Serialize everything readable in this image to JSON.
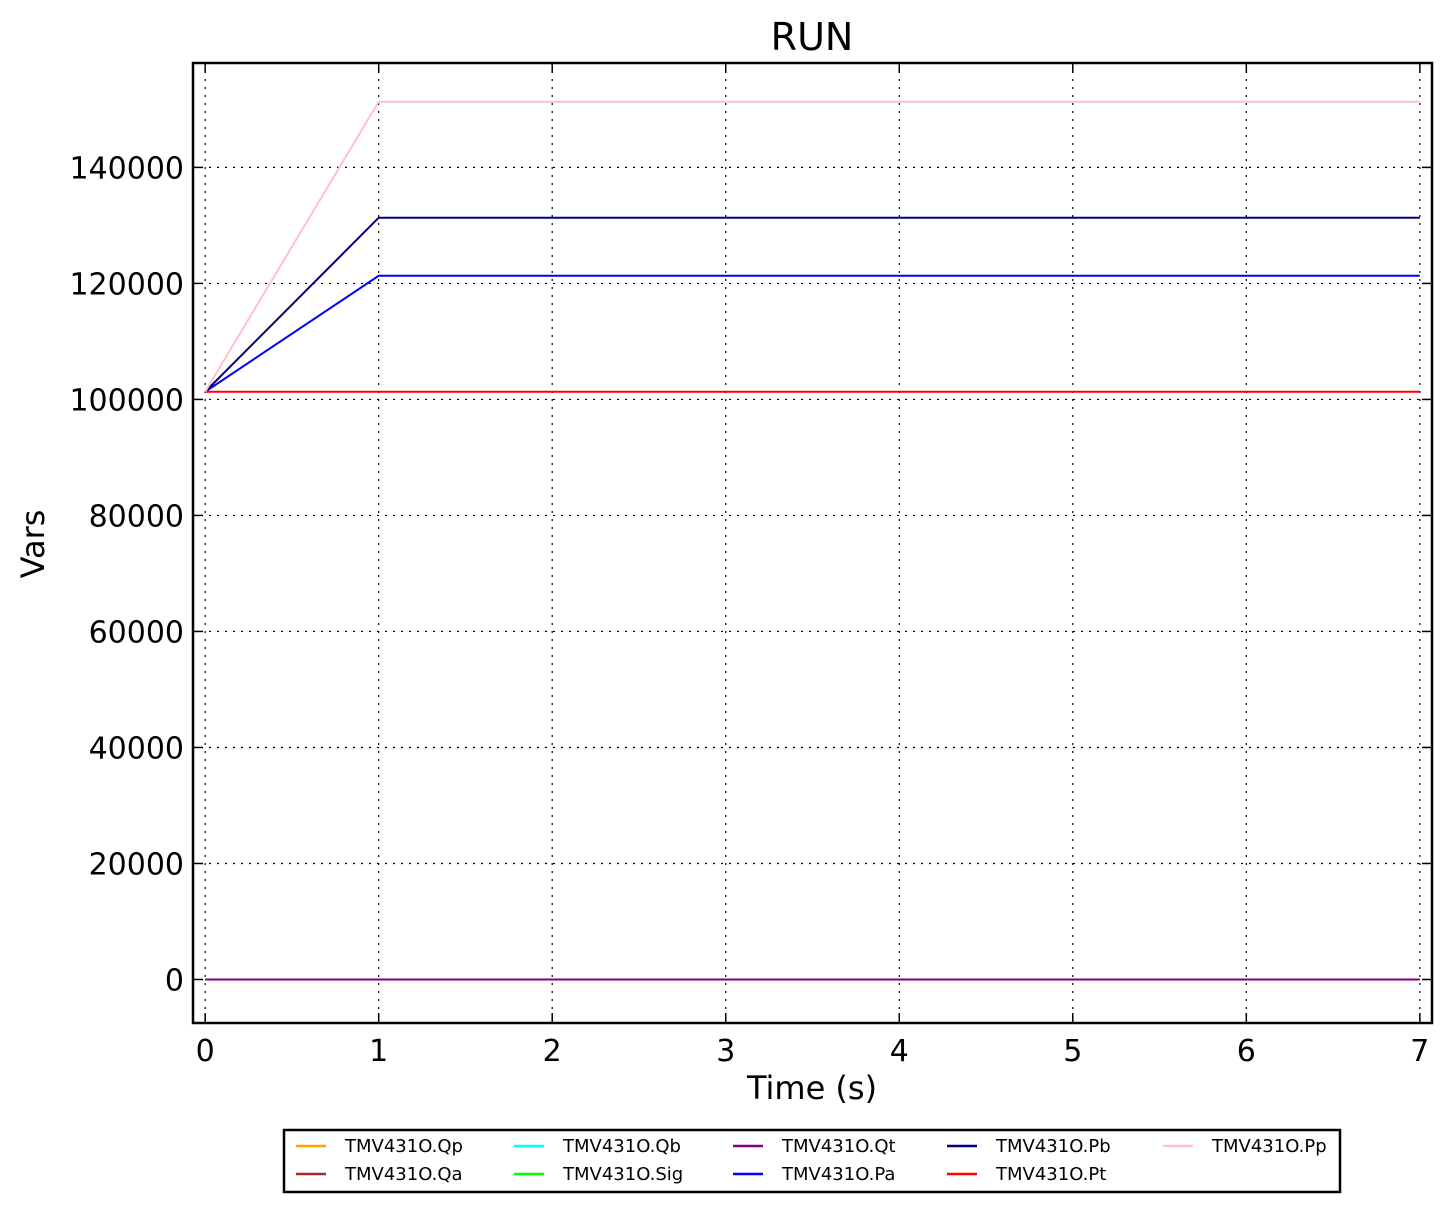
{
  "chart_data": {
    "type": "line",
    "title": "RUN",
    "xlabel": "Time (s)",
    "ylabel": "Vars",
    "xlim": [
      -0.07,
      7.07
    ],
    "ylim": [
      -7500,
      158000
    ],
    "xticks": [
      0,
      1,
      2,
      3,
      4,
      5,
      6,
      7
    ],
    "yticks": [
      0,
      20000,
      40000,
      60000,
      80000,
      100000,
      120000,
      140000
    ],
    "grid": true,
    "legend_position": "below",
    "x": [
      0,
      1,
      2,
      3,
      4,
      5,
      6,
      7
    ],
    "series": [
      {
        "name": "TMV431O.Qp",
        "color": "#ffa500",
        "values": [
          0,
          0,
          0,
          0,
          0,
          0,
          0,
          0
        ]
      },
      {
        "name": "TMV431O.Qa",
        "color": "#a52a2a",
        "values": [
          0,
          0,
          0,
          0,
          0,
          0,
          0,
          0
        ]
      },
      {
        "name": "TMV431O.Qb",
        "color": "#00ffff",
        "values": [
          0,
          0,
          0,
          0,
          0,
          0,
          0,
          0
        ]
      },
      {
        "name": "TMV431O.Sig",
        "color": "#00ff00",
        "values": [
          0,
          0,
          0,
          0,
          0,
          0,
          0,
          0
        ]
      },
      {
        "name": "TMV431O.Qt",
        "color": "#800080",
        "values": [
          0,
          0,
          0,
          0,
          0,
          0,
          0,
          0
        ]
      },
      {
        "name": "TMV431O.Pa",
        "color": "#0000ff",
        "values": [
          101325,
          121325,
          121325,
          121325,
          121325,
          121325,
          121325,
          121325
        ]
      },
      {
        "name": "TMV431O.Pb",
        "color": "#000080",
        "values": [
          101325,
          131325,
          131325,
          131325,
          131325,
          131325,
          131325,
          131325
        ]
      },
      {
        "name": "TMV431O.Pt",
        "color": "#ff0000",
        "values": [
          101325,
          101325,
          101325,
          101325,
          101325,
          101325,
          101325,
          101325
        ]
      },
      {
        "name": "TMV431O.Pp",
        "color": "#ffc0cb",
        "values": [
          101325,
          151325,
          151325,
          151325,
          151325,
          151325,
          151325,
          151325
        ]
      }
    ],
    "legend_order": [
      "TMV431O.Qp",
      "TMV431O.Qa",
      "TMV431O.Qb",
      "TMV431O.Sig",
      "TMV431O.Qt",
      "TMV431O.Pa",
      "TMV431O.Pb",
      "TMV431O.Pt",
      "TMV431O.Pp"
    ]
  }
}
